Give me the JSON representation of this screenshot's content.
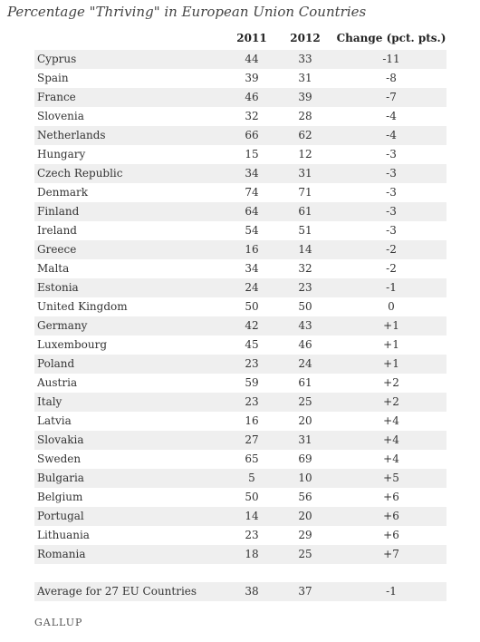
{
  "chart_data": {
    "type": "table",
    "title": "Percentage \"Thriving\" in European Union Countries",
    "columns": [
      "2011",
      "2012",
      "Change (pct. pts.)"
    ],
    "rows": [
      {
        "country": "Cyprus",
        "y2011": "44",
        "y2012": "33",
        "change": "-11"
      },
      {
        "country": "Spain",
        "y2011": "39",
        "y2012": "31",
        "change": "-8"
      },
      {
        "country": "France",
        "y2011": "46",
        "y2012": "39",
        "change": "-7"
      },
      {
        "country": "Slovenia",
        "y2011": "32",
        "y2012": "28",
        "change": "-4"
      },
      {
        "country": "Netherlands",
        "y2011": "66",
        "y2012": "62",
        "change": "-4"
      },
      {
        "country": "Hungary",
        "y2011": "15",
        "y2012": "12",
        "change": "-3"
      },
      {
        "country": "Czech Republic",
        "y2011": "34",
        "y2012": "31",
        "change": "-3"
      },
      {
        "country": "Denmark",
        "y2011": "74",
        "y2012": "71",
        "change": "-3"
      },
      {
        "country": "Finland",
        "y2011": "64",
        "y2012": "61",
        "change": "-3"
      },
      {
        "country": "Ireland",
        "y2011": "54",
        "y2012": "51",
        "change": "-3"
      },
      {
        "country": "Greece",
        "y2011": "16",
        "y2012": "14",
        "change": "-2"
      },
      {
        "country": "Malta",
        "y2011": "34",
        "y2012": "32",
        "change": "-2"
      },
      {
        "country": "Estonia",
        "y2011": "24",
        "y2012": "23",
        "change": "-1"
      },
      {
        "country": "United Kingdom",
        "y2011": "50",
        "y2012": "50",
        "change": "0"
      },
      {
        "country": "Germany",
        "y2011": "42",
        "y2012": "43",
        "change": "+1"
      },
      {
        "country": "Luxembourg",
        "y2011": "45",
        "y2012": "46",
        "change": "+1"
      },
      {
        "country": "Poland",
        "y2011": "23",
        "y2012": "24",
        "change": "+1"
      },
      {
        "country": "Austria",
        "y2011": "59",
        "y2012": "61",
        "change": "+2"
      },
      {
        "country": "Italy",
        "y2011": "23",
        "y2012": "25",
        "change": "+2"
      },
      {
        "country": "Latvia",
        "y2011": "16",
        "y2012": "20",
        "change": "+4"
      },
      {
        "country": "Slovakia",
        "y2011": "27",
        "y2012": "31",
        "change": "+4"
      },
      {
        "country": "Sweden",
        "y2011": "65",
        "y2012": "69",
        "change": "+4"
      },
      {
        "country": "Bulgaria",
        "y2011": "5",
        "y2012": "10",
        "change": "+5"
      },
      {
        "country": "Belgium",
        "y2011": "50",
        "y2012": "56",
        "change": "+6"
      },
      {
        "country": "Portugal",
        "y2011": "14",
        "y2012": "20",
        "change": "+6"
      },
      {
        "country": "Lithuania",
        "y2011": "23",
        "y2012": "29",
        "change": "+6"
      },
      {
        "country": "Romania",
        "y2011": "18",
        "y2012": "25",
        "change": "+7"
      }
    ],
    "average": {
      "country": "Average for 27 EU Countries",
      "y2011": "38",
      "y2012": "37",
      "change": "-1"
    }
  },
  "source": "GALLUP",
  "colors": {
    "row_shade": "#efefef",
    "text": "#333333"
  }
}
